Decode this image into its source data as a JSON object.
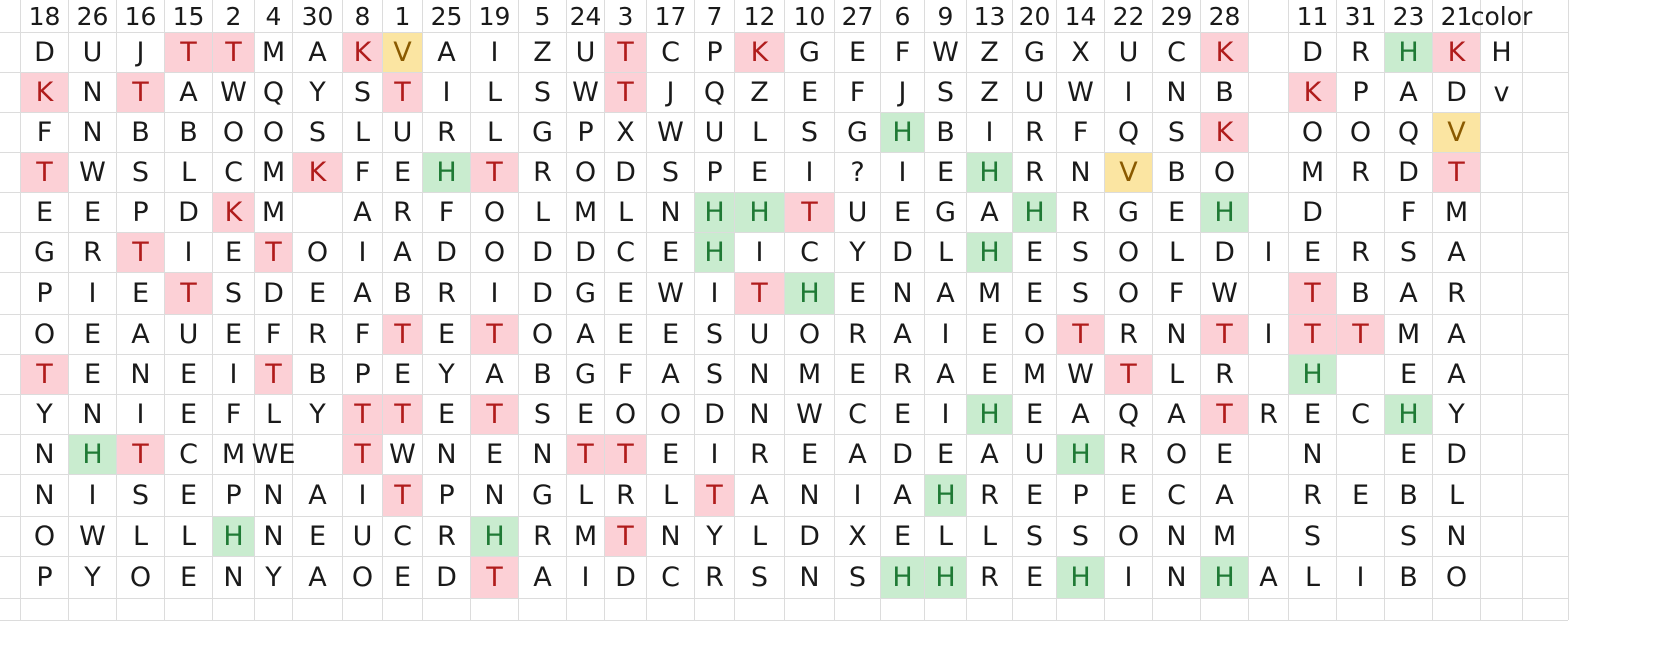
{
  "sheet": {
    "headers": [
      "18",
      "26",
      "16",
      "15",
      "2",
      "4",
      "30",
      "8",
      "1",
      "25",
      "19",
      "5",
      "24",
      "3",
      "17",
      "7",
      "12",
      "10",
      "27",
      "6",
      "9",
      "13",
      "20",
      "14",
      "22",
      "29",
      "28",
      "",
      "11",
      "31",
      "23",
      "21",
      "color"
    ],
    "rows": [
      [
        "D",
        "U",
        "J",
        "T",
        "T",
        "M",
        "A",
        "K",
        "V",
        "A",
        "I",
        "Z",
        "U",
        "T",
        "C",
        "P",
        "K",
        "G",
        "E",
        "F",
        "W",
        "Z",
        "G",
        "X",
        "U",
        "C",
        "K",
        "",
        "D",
        "R",
        "H",
        "K",
        "H"
      ],
      [
        "K",
        "N",
        "T",
        "A",
        "W",
        "Q",
        "Y",
        "S",
        "T",
        "I",
        "L",
        "S",
        "W",
        "T",
        "J",
        "Q",
        "Z",
        "E",
        "F",
        "J",
        "S",
        "Z",
        "U",
        "W",
        "I",
        "N",
        "B",
        "",
        "K",
        "P",
        "A",
        "D",
        "v"
      ],
      [
        "F",
        "N",
        "B",
        "B",
        "O",
        "O",
        "S",
        "L",
        "U",
        "R",
        "L",
        "G",
        "P",
        "X",
        "W",
        "U",
        "L",
        "S",
        "G",
        "H",
        "B",
        "I",
        "R",
        "F",
        "Q",
        "S",
        "K",
        "",
        "O",
        "O",
        "Q",
        "V",
        ""
      ],
      [
        "T",
        "W",
        "S",
        "L",
        "C",
        "M",
        "K",
        "F",
        "E",
        "H",
        "T",
        "R",
        "O",
        "D",
        "S",
        "P",
        "E",
        "I",
        "?",
        "I",
        "E",
        "H",
        "R",
        "N",
        "V",
        "B",
        "O",
        "",
        "M",
        "R",
        "D",
        "T",
        ""
      ],
      [
        "E",
        "E",
        "P",
        "D",
        "K",
        "M",
        "",
        "A",
        "R",
        "F",
        "O",
        "L",
        "M",
        "L",
        "N",
        "H",
        "H",
        "T",
        "U",
        "E",
        "G",
        "A",
        "H",
        "R",
        "G",
        "E",
        "H",
        "",
        "D",
        "",
        "F",
        "M",
        ""
      ],
      [
        "G",
        "R",
        "T",
        "I",
        "E",
        "T",
        "O",
        "I",
        "A",
        "D",
        "O",
        "D",
        "D",
        "C",
        "E",
        "H",
        "I",
        "C",
        "Y",
        "D",
        "L",
        "H",
        "E",
        "S",
        "O",
        "L",
        "D",
        "I",
        "E",
        "R",
        "S",
        "A",
        ""
      ],
      [
        "P",
        "I",
        "E",
        "T",
        "S",
        "D",
        "E",
        "A",
        "B",
        "R",
        "I",
        "D",
        "G",
        "E",
        "W",
        "I",
        "T",
        "H",
        "E",
        "N",
        "A",
        "M",
        "E",
        "S",
        "O",
        "F",
        "W",
        "",
        "T",
        "B",
        "A",
        "R",
        ""
      ],
      [
        "O",
        "E",
        "A",
        "U",
        "E",
        "F",
        "R",
        "F",
        "T",
        "E",
        "T",
        "O",
        "A",
        "E",
        "E",
        "S",
        "U",
        "O",
        "R",
        "A",
        "I",
        "E",
        "O",
        "T",
        "R",
        "N",
        "T",
        "I",
        "T",
        "T",
        "M",
        "A",
        ""
      ],
      [
        "T",
        "E",
        "N",
        "E",
        "I",
        "T",
        "B",
        "P",
        "E",
        "Y",
        "A",
        "B",
        "G",
        "F",
        "A",
        "S",
        "N",
        "M",
        "E",
        "R",
        "A",
        "E",
        "M",
        "W",
        "T",
        "L",
        "R",
        "",
        "H",
        "",
        "E",
        "A",
        ""
      ],
      [
        "Y",
        "N",
        "I",
        "E",
        "F",
        "L",
        "Y",
        "T",
        "T",
        "E",
        "T",
        "S",
        "E",
        "O",
        "O",
        "D",
        "N",
        "W",
        "C",
        "E",
        "I",
        "H",
        "E",
        "A",
        "Q",
        "A",
        "T",
        "R",
        "E",
        "C",
        "H",
        "Y",
        ""
      ],
      [
        "N",
        "H",
        "T",
        "C",
        "M",
        "WE",
        "",
        "T",
        "W",
        "N",
        "E",
        "N",
        "T",
        "T",
        "E",
        "I",
        "R",
        "E",
        "A",
        "D",
        "E",
        "A",
        "U",
        "H",
        "R",
        "O",
        "E",
        "",
        "N",
        "",
        "E",
        "D",
        ""
      ],
      [
        "N",
        "I",
        "S",
        "E",
        "P",
        "N",
        "A",
        "I",
        "T",
        "P",
        "N",
        "G",
        "L",
        "R",
        "L",
        "T",
        "A",
        "N",
        "I",
        "A",
        "H",
        "R",
        "E",
        "P",
        "E",
        "C",
        "A",
        "",
        "R",
        "E",
        "B",
        "L",
        ""
      ],
      [
        "O",
        "W",
        "L",
        "L",
        "H",
        "N",
        "E",
        "U",
        "C",
        "R",
        "H",
        "R",
        "M",
        "T",
        "N",
        "Y",
        "L",
        "D",
        "X",
        "E",
        "L",
        "L",
        "S",
        "S",
        "O",
        "N",
        "M",
        "",
        "S",
        "",
        "S",
        "N",
        ""
      ],
      [
        "P",
        "Y",
        "O",
        "E",
        "N",
        "Y",
        "A",
        "O",
        "E",
        "D",
        "T",
        "A",
        "I",
        "D",
        "C",
        "R",
        "S",
        "N",
        "S",
        "H",
        "H",
        "R",
        "E",
        "H",
        "I",
        "N",
        "H",
        "A",
        "L",
        "I",
        "B",
        "O",
        ""
      ]
    ],
    "highlights": {
      "0": {
        "3": "red",
        "4": "red",
        "7": "red",
        "8": "yellow",
        "13": "red",
        "16": "red",
        "26": "red",
        "30": "green",
        "31": "red"
      },
      "1": {
        "0": "red",
        "2": "red",
        "8": "red",
        "13": "red",
        "28": "red"
      },
      "2": {
        "19": "green",
        "26": "red",
        "31": "yellow"
      },
      "3": {
        "0": "red",
        "6": "red",
        "9": "green",
        "10": "red",
        "21": "green",
        "24": "yellow",
        "31": "red"
      },
      "4": {
        "4": "red",
        "15": "green",
        "16": "green",
        "17": "red",
        "22": "green",
        "26": "green"
      },
      "5": {
        "2": "red",
        "5": "red",
        "15": "green",
        "21": "green"
      },
      "6": {
        "3": "red",
        "16": "red",
        "17": "green",
        "28": "red"
      },
      "7": {
        "8": "red",
        "10": "red",
        "23": "red",
        "26": "red",
        "28": "red",
        "29": "red"
      },
      "8": {
        "0": "red",
        "5": "red",
        "24": "red",
        "28": "green"
      },
      "9": {
        "7": "red",
        "8": "red",
        "10": "red",
        "21": "green",
        "26": "red",
        "30": "green"
      },
      "10": {
        "1": "green",
        "2": "red",
        "7": "red",
        "12": "red",
        "13": "red",
        "23": "green"
      },
      "11": {
        "8": "red",
        "15": "red",
        "20": "green"
      },
      "12": {
        "4": "green",
        "10": "green",
        "13": "red"
      },
      "13": {
        "10": "red",
        "19": "green",
        "20": "green",
        "23": "green",
        "26": "green"
      }
    },
    "colors": {
      "gridline": "#dcdcdc",
      "red_fill": "#fcd0d6",
      "red_text": "#b01c1c",
      "green_fill": "#c9eccf",
      "green_text": "#1f7a35",
      "yellow_fill": "#fbe5a2",
      "yellow_text": "#8a5a00"
    }
  }
}
